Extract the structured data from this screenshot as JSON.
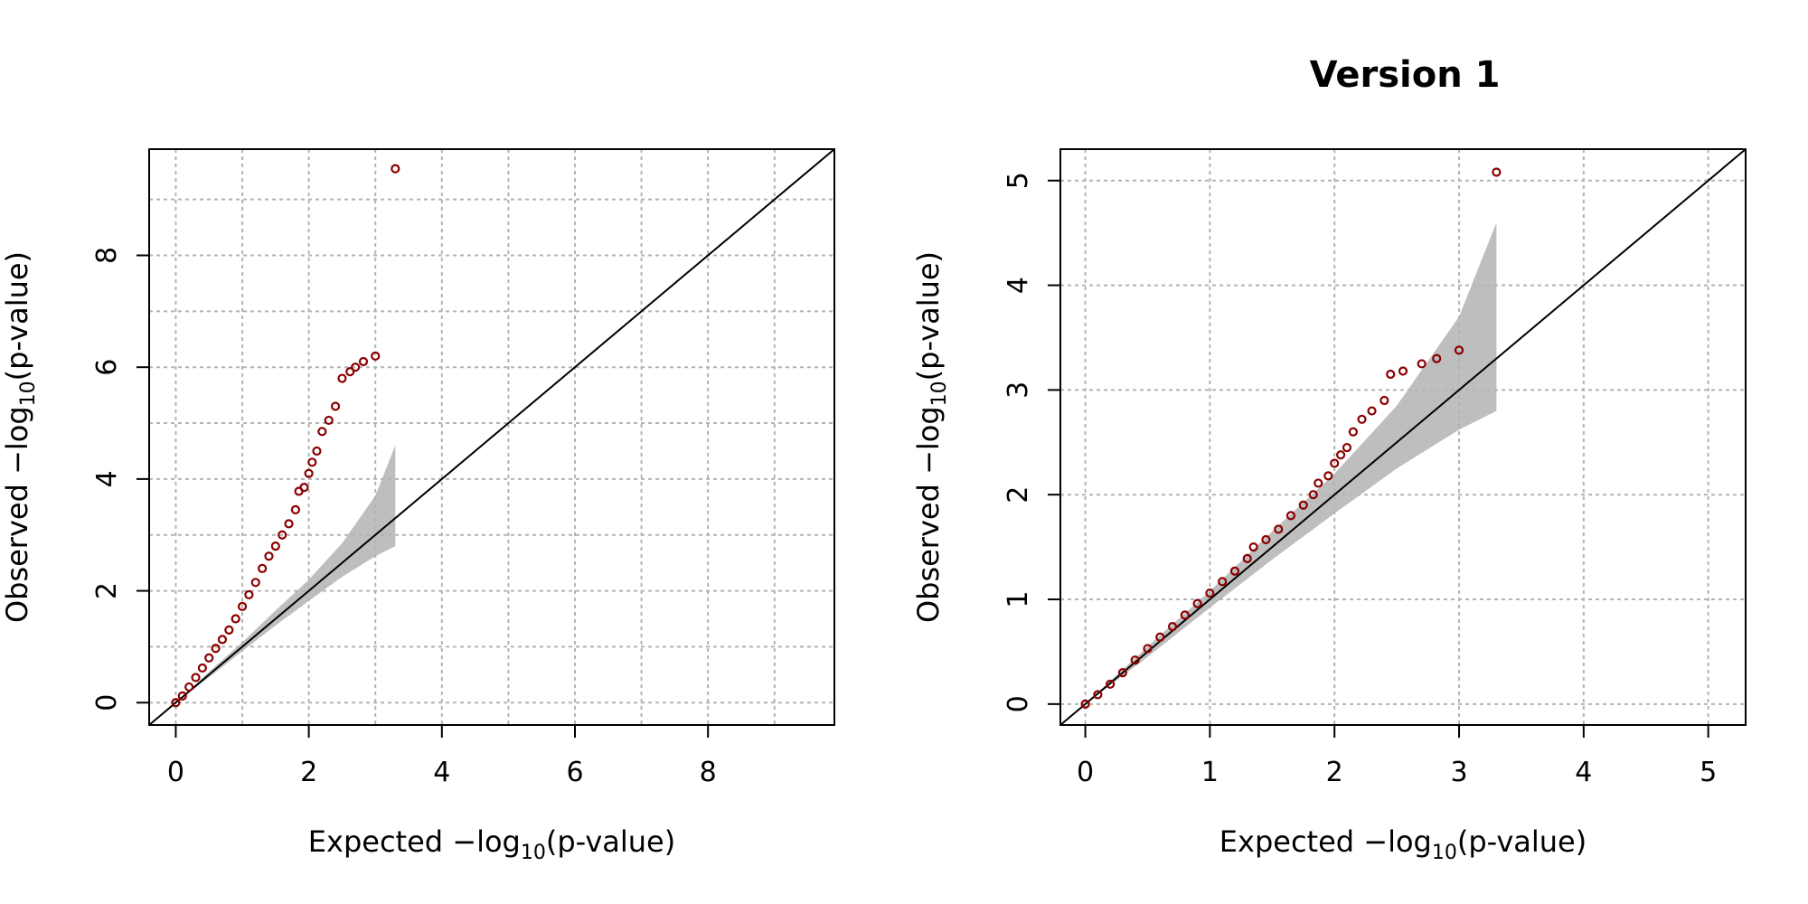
{
  "chart_data": [
    {
      "type": "scatter",
      "title": "",
      "xlabel": "Expected −log10(p-value)",
      "ylabel": "Observed −log10(p-value)",
      "xlim": [
        -0.4,
        9.9
      ],
      "ylim": [
        -0.4,
        9.9
      ],
      "x_ticks": [
        0,
        2,
        4,
        6,
        8
      ],
      "y_ticks": [
        0,
        2,
        4,
        6,
        8
      ],
      "grid": true,
      "grid_step": 1,
      "reference_line": "y = x",
      "point_color": "#8b0000",
      "band_color": "#bebebe",
      "confidence_band": {
        "x": [
          0,
          0.5,
          1.0,
          1.5,
          2.0,
          2.5,
          3.0,
          3.3
        ],
        "lower": [
          0,
          0.45,
          0.92,
          1.38,
          1.82,
          2.25,
          2.62,
          2.8
        ],
        "upper": [
          0,
          0.55,
          1.08,
          1.65,
          2.2,
          2.85,
          3.7,
          4.6
        ]
      },
      "series": [
        {
          "values": [
            [
              0,
              0
            ],
            [
              0.1,
              0.12
            ],
            [
              0.2,
              0.28
            ],
            [
              0.3,
              0.45
            ],
            [
              0.4,
              0.62
            ],
            [
              0.5,
              0.8
            ],
            [
              0.6,
              0.97
            ],
            [
              0.7,
              1.13
            ],
            [
              0.8,
              1.3
            ],
            [
              0.9,
              1.5
            ],
            [
              1.0,
              1.72
            ],
            [
              1.1,
              1.93
            ],
            [
              1.2,
              2.15
            ],
            [
              1.3,
              2.4
            ],
            [
              1.4,
              2.62
            ],
            [
              1.5,
              2.8
            ],
            [
              1.6,
              3.0
            ],
            [
              1.7,
              3.2
            ],
            [
              1.8,
              3.45
            ],
            [
              1.85,
              3.78
            ],
            [
              1.93,
              3.85
            ],
            [
              2.0,
              4.1
            ],
            [
              2.05,
              4.3
            ],
            [
              2.12,
              4.5
            ],
            [
              2.2,
              4.85
            ],
            [
              2.3,
              5.05
            ],
            [
              2.4,
              5.3
            ],
            [
              2.5,
              5.8
            ],
            [
              2.62,
              5.92
            ],
            [
              2.7,
              6.0
            ],
            [
              2.82,
              6.1
            ],
            [
              3.0,
              6.2
            ],
            [
              3.3,
              9.55
            ]
          ]
        }
      ]
    },
    {
      "type": "scatter",
      "title": "Version 1",
      "xlabel": "Expected −log10(p-value)",
      "ylabel": "Observed −log10(p-value)",
      "xlim": [
        -0.2,
        5.3
      ],
      "ylim": [
        -0.2,
        5.3
      ],
      "x_ticks": [
        0,
        1,
        2,
        3,
        4,
        5
      ],
      "y_ticks": [
        0,
        1,
        2,
        3,
        4,
        5
      ],
      "grid": true,
      "grid_step": 1,
      "reference_line": "y = x",
      "point_color": "#8b0000",
      "band_color": "#bebebe",
      "confidence_band": {
        "x": [
          0,
          0.5,
          1.0,
          1.5,
          2.0,
          2.5,
          3.0,
          3.3
        ],
        "lower": [
          0,
          0.45,
          0.92,
          1.38,
          1.82,
          2.25,
          2.62,
          2.8
        ],
        "upper": [
          0,
          0.55,
          1.08,
          1.65,
          2.2,
          2.85,
          3.7,
          4.6
        ]
      },
      "series": [
        {
          "values": [
            [
              0,
              0
            ],
            [
              0.1,
              0.09
            ],
            [
              0.2,
              0.19
            ],
            [
              0.3,
              0.3
            ],
            [
              0.4,
              0.42
            ],
            [
              0.5,
              0.53
            ],
            [
              0.6,
              0.64
            ],
            [
              0.7,
              0.74
            ],
            [
              0.8,
              0.85
            ],
            [
              0.9,
              0.96
            ],
            [
              1.0,
              1.06
            ],
            [
              1.1,
              1.17
            ],
            [
              1.2,
              1.27
            ],
            [
              1.3,
              1.39
            ],
            [
              1.35,
              1.5
            ],
            [
              1.45,
              1.57
            ],
            [
              1.55,
              1.67
            ],
            [
              1.65,
              1.8
            ],
            [
              1.75,
              1.9
            ],
            [
              1.83,
              2.0
            ],
            [
              1.87,
              2.11
            ],
            [
              1.95,
              2.18
            ],
            [
              2.0,
              2.3
            ],
            [
              2.05,
              2.38
            ],
            [
              2.1,
              2.45
            ],
            [
              2.15,
              2.6
            ],
            [
              2.22,
              2.72
            ],
            [
              2.3,
              2.8
            ],
            [
              2.4,
              2.9
            ],
            [
              2.45,
              3.15
            ],
            [
              2.55,
              3.18
            ],
            [
              2.7,
              3.25
            ],
            [
              2.82,
              3.3
            ],
            [
              3.0,
              3.38
            ],
            [
              3.3,
              5.08
            ]
          ]
        }
      ]
    }
  ]
}
